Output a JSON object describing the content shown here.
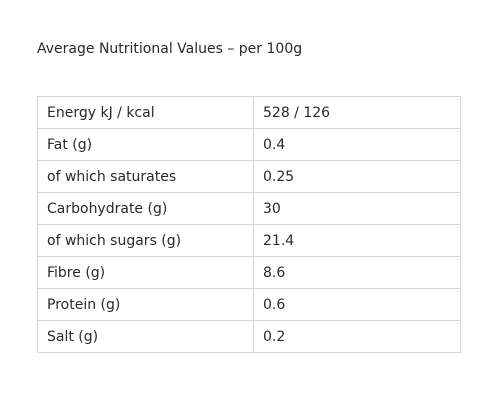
{
  "heading": "Average Nutritional Values – per 100g",
  "rows": [
    {
      "label": "Energy kJ / kcal",
      "value": "528 / 126"
    },
    {
      "label": "Fat (g)",
      "value": "0.4"
    },
    {
      "label": "of which saturates",
      "value": "0.25"
    },
    {
      "label": "Carbohydrate (g)",
      "value": "30"
    },
    {
      "label": "of which sugars (g)",
      "value": "21.4"
    },
    {
      "label": "Fibre (g)",
      "value": "8.6"
    },
    {
      "label": "Protein (g)",
      "value": "0.6"
    },
    {
      "label": "Salt (g)",
      "value": "0.2"
    }
  ]
}
